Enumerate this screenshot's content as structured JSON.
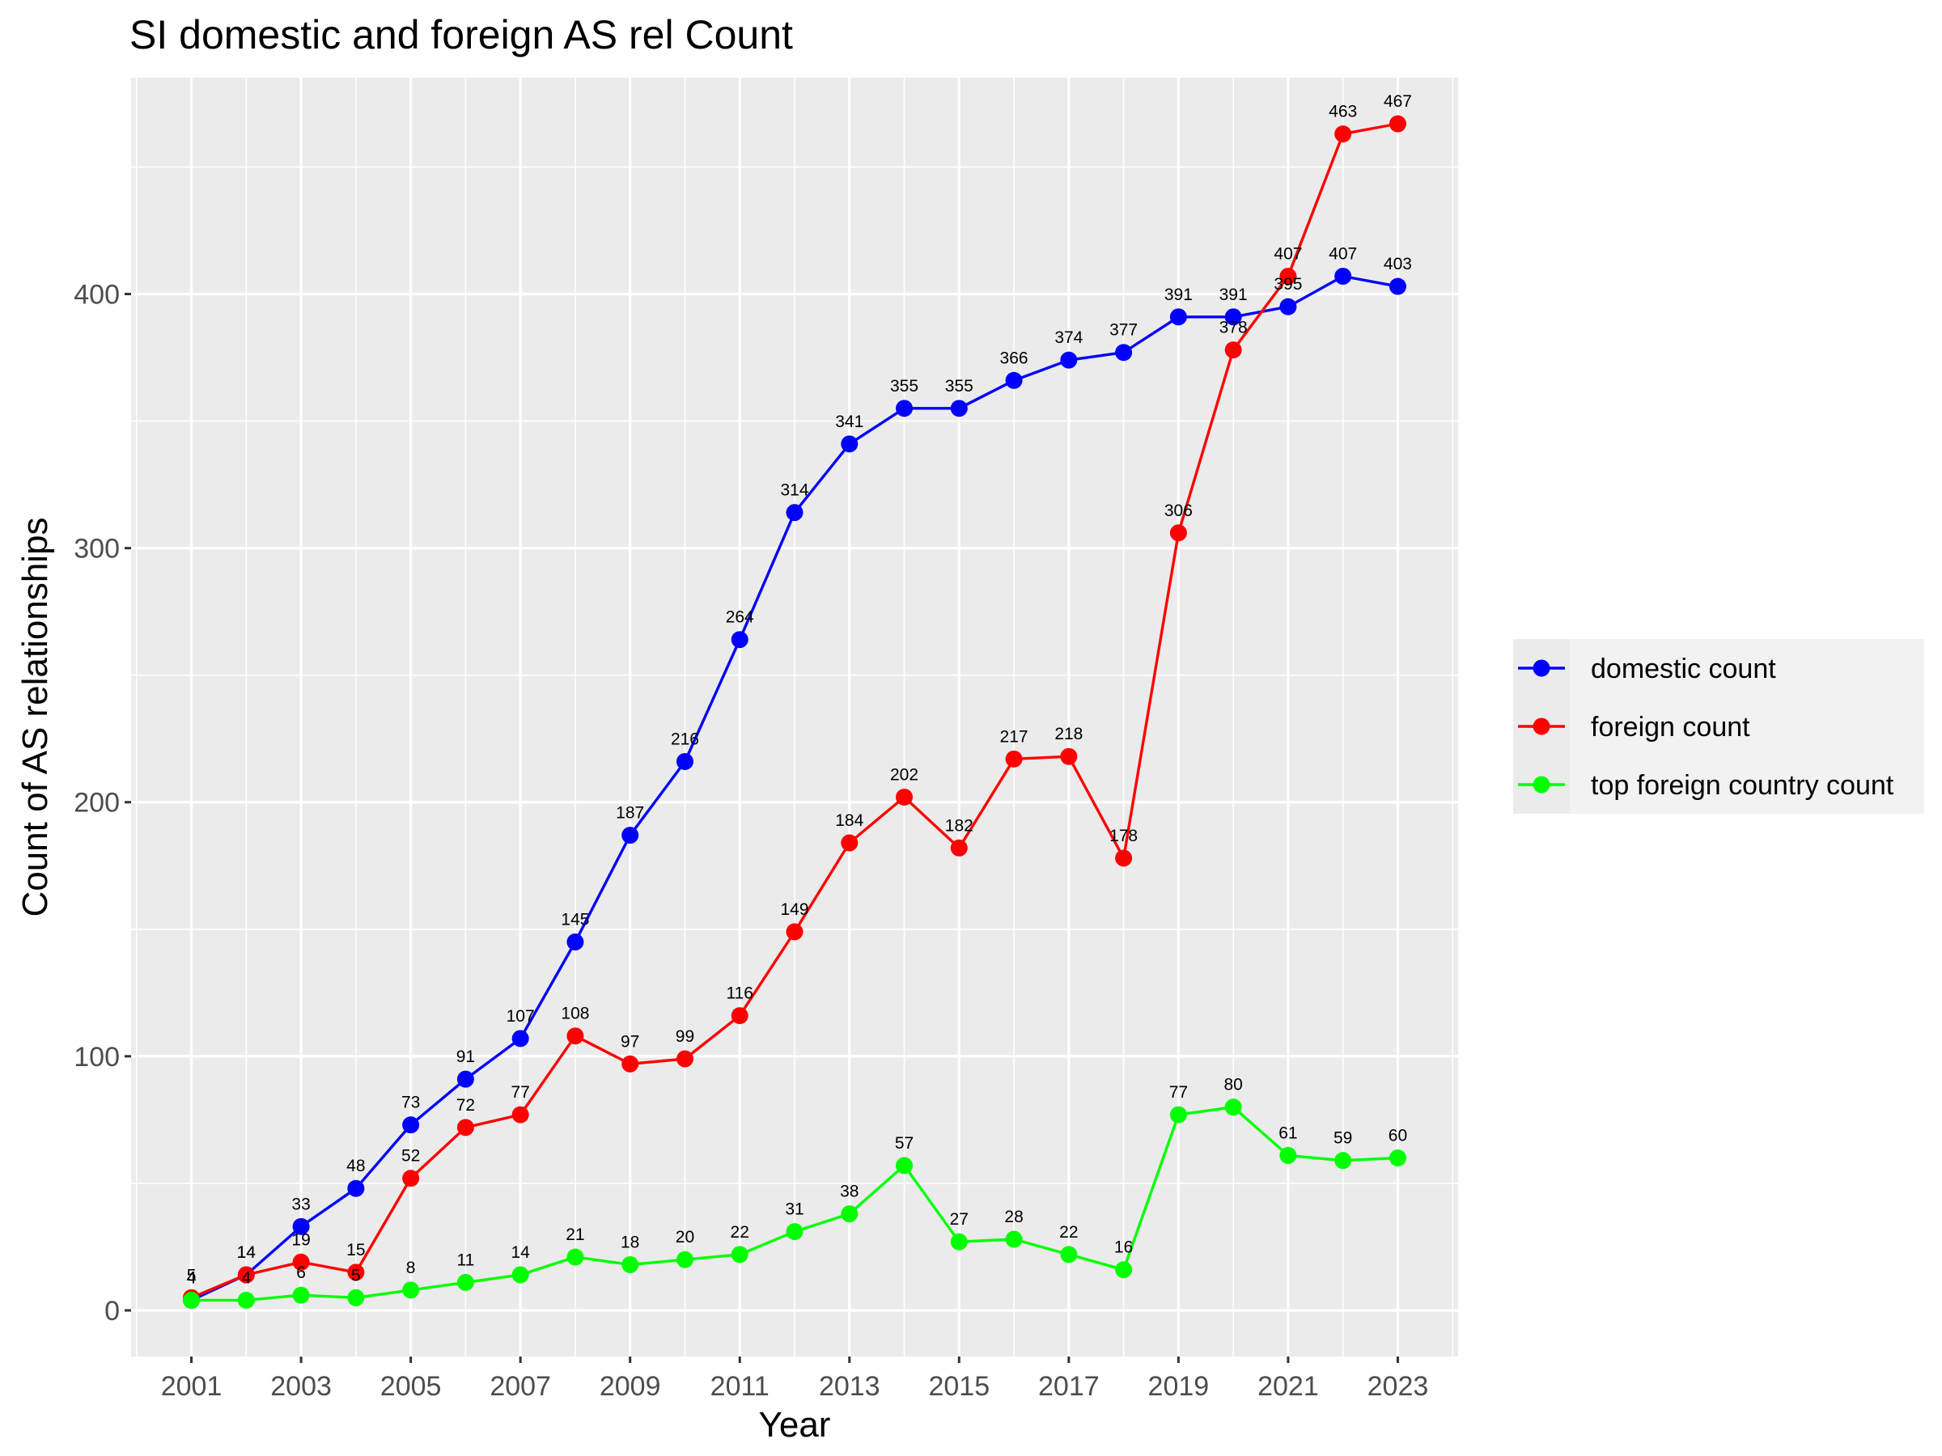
{
  "chart_data": {
    "type": "line",
    "title": "SI domestic and foreign AS rel Count",
    "xlabel": "Year",
    "ylabel": "Count of AS relationships",
    "x": [
      2001,
      2002,
      2003,
      2004,
      2005,
      2006,
      2007,
      2008,
      2009,
      2010,
      2011,
      2012,
      2013,
      2014,
      2015,
      2016,
      2017,
      2018,
      2019,
      2020,
      2021,
      2022,
      2023
    ],
    "xticks": [
      "2001",
      "2003",
      "2005",
      "2007",
      "2009",
      "2011",
      "2013",
      "2015",
      "2017",
      "2019",
      "2021",
      "2023"
    ],
    "yticks": [
      "0",
      "100",
      "200",
      "300",
      "400"
    ],
    "xlim": [
      1999.9,
      2024.1
    ],
    "ylim": [
      -18.15,
      485.15
    ],
    "grid": true,
    "legend_position": "right",
    "series": [
      {
        "name": "domestic count",
        "color": "#0000ff",
        "values": [
          4,
          14,
          33,
          48,
          73,
          91,
          107,
          145,
          187,
          216,
          264,
          314,
          341,
          355,
          355,
          366,
          374,
          377,
          391,
          391,
          395,
          407,
          403
        ]
      },
      {
        "name": "foreign count",
        "color": "#ff0000",
        "values": [
          5,
          14,
          19,
          15,
          52,
          72,
          77,
          108,
          97,
          99,
          116,
          149,
          184,
          202,
          182,
          217,
          218,
          178,
          306,
          378,
          407,
          463,
          467
        ]
      },
      {
        "name": "top foreign country count",
        "color": "#00ff00",
        "values": [
          4,
          4,
          6,
          5,
          8,
          11,
          14,
          21,
          18,
          20,
          22,
          31,
          38,
          57,
          27,
          28,
          22,
          16,
          77,
          80,
          61,
          59,
          60
        ]
      }
    ]
  }
}
